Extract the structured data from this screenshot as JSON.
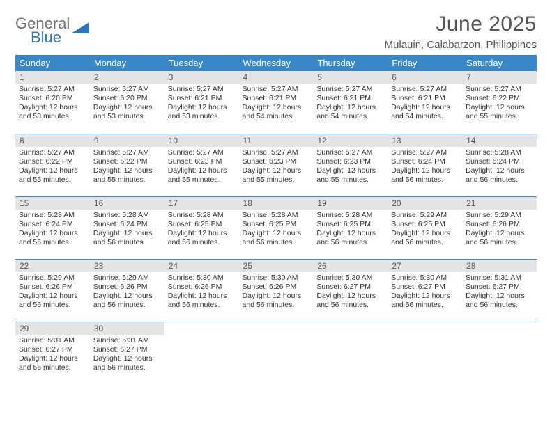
{
  "logo": {
    "top": "General",
    "bottom": "Blue",
    "shape_color": "#2b76b8",
    "text_gray": "#6b6b6b"
  },
  "title": "June 2025",
  "location": "Mulauin, Calabarzon, Philippines",
  "colors": {
    "header_bg": "#3a87c8",
    "header_text": "#ffffff",
    "daybar_bg": "#e4e4e4",
    "daybar_text": "#555555",
    "body_text": "#333333",
    "divider": "#3a87c8",
    "background": "#ffffff"
  },
  "typography": {
    "title_fontsize": 30,
    "location_fontsize": 15,
    "dayheader_fontsize": 13,
    "daynum_fontsize": 12,
    "cell_fontsize": 10.5
  },
  "calendar": {
    "type": "table",
    "day_headers": [
      "Sunday",
      "Monday",
      "Tuesday",
      "Wednesday",
      "Thursday",
      "Friday",
      "Saturday"
    ],
    "weeks": [
      [
        {
          "n": "1",
          "sr": "5:27 AM",
          "ss": "6:20 PM",
          "dl": "12 hours and 53 minutes."
        },
        {
          "n": "2",
          "sr": "5:27 AM",
          "ss": "6:20 PM",
          "dl": "12 hours and 53 minutes."
        },
        {
          "n": "3",
          "sr": "5:27 AM",
          "ss": "6:21 PM",
          "dl": "12 hours and 53 minutes."
        },
        {
          "n": "4",
          "sr": "5:27 AM",
          "ss": "6:21 PM",
          "dl": "12 hours and 54 minutes."
        },
        {
          "n": "5",
          "sr": "5:27 AM",
          "ss": "6:21 PM",
          "dl": "12 hours and 54 minutes."
        },
        {
          "n": "6",
          "sr": "5:27 AM",
          "ss": "6:21 PM",
          "dl": "12 hours and 54 minutes."
        },
        {
          "n": "7",
          "sr": "5:27 AM",
          "ss": "6:22 PM",
          "dl": "12 hours and 55 minutes."
        }
      ],
      [
        {
          "n": "8",
          "sr": "5:27 AM",
          "ss": "6:22 PM",
          "dl": "12 hours and 55 minutes."
        },
        {
          "n": "9",
          "sr": "5:27 AM",
          "ss": "6:22 PM",
          "dl": "12 hours and 55 minutes."
        },
        {
          "n": "10",
          "sr": "5:27 AM",
          "ss": "6:23 PM",
          "dl": "12 hours and 55 minutes."
        },
        {
          "n": "11",
          "sr": "5:27 AM",
          "ss": "6:23 PM",
          "dl": "12 hours and 55 minutes."
        },
        {
          "n": "12",
          "sr": "5:27 AM",
          "ss": "6:23 PM",
          "dl": "12 hours and 55 minutes."
        },
        {
          "n": "13",
          "sr": "5:27 AM",
          "ss": "6:24 PM",
          "dl": "12 hours and 56 minutes."
        },
        {
          "n": "14",
          "sr": "5:28 AM",
          "ss": "6:24 PM",
          "dl": "12 hours and 56 minutes."
        }
      ],
      [
        {
          "n": "15",
          "sr": "5:28 AM",
          "ss": "6:24 PM",
          "dl": "12 hours and 56 minutes."
        },
        {
          "n": "16",
          "sr": "5:28 AM",
          "ss": "6:24 PM",
          "dl": "12 hours and 56 minutes."
        },
        {
          "n": "17",
          "sr": "5:28 AM",
          "ss": "6:25 PM",
          "dl": "12 hours and 56 minutes."
        },
        {
          "n": "18",
          "sr": "5:28 AM",
          "ss": "6:25 PM",
          "dl": "12 hours and 56 minutes."
        },
        {
          "n": "19",
          "sr": "5:28 AM",
          "ss": "6:25 PM",
          "dl": "12 hours and 56 minutes."
        },
        {
          "n": "20",
          "sr": "5:29 AM",
          "ss": "6:25 PM",
          "dl": "12 hours and 56 minutes."
        },
        {
          "n": "21",
          "sr": "5:29 AM",
          "ss": "6:26 PM",
          "dl": "12 hours and 56 minutes."
        }
      ],
      [
        {
          "n": "22",
          "sr": "5:29 AM",
          "ss": "6:26 PM",
          "dl": "12 hours and 56 minutes."
        },
        {
          "n": "23",
          "sr": "5:29 AM",
          "ss": "6:26 PM",
          "dl": "12 hours and 56 minutes."
        },
        {
          "n": "24",
          "sr": "5:30 AM",
          "ss": "6:26 PM",
          "dl": "12 hours and 56 minutes."
        },
        {
          "n": "25",
          "sr": "5:30 AM",
          "ss": "6:26 PM",
          "dl": "12 hours and 56 minutes."
        },
        {
          "n": "26",
          "sr": "5:30 AM",
          "ss": "6:27 PM",
          "dl": "12 hours and 56 minutes."
        },
        {
          "n": "27",
          "sr": "5:30 AM",
          "ss": "6:27 PM",
          "dl": "12 hours and 56 minutes."
        },
        {
          "n": "28",
          "sr": "5:31 AM",
          "ss": "6:27 PM",
          "dl": "12 hours and 56 minutes."
        }
      ],
      [
        {
          "n": "29",
          "sr": "5:31 AM",
          "ss": "6:27 PM",
          "dl": "12 hours and 56 minutes."
        },
        {
          "n": "30",
          "sr": "5:31 AM",
          "ss": "6:27 PM",
          "dl": "12 hours and 56 minutes."
        },
        null,
        null,
        null,
        null,
        null
      ]
    ],
    "labels": {
      "sunrise": "Sunrise:",
      "sunset": "Sunset:",
      "daylight": "Daylight:"
    }
  }
}
